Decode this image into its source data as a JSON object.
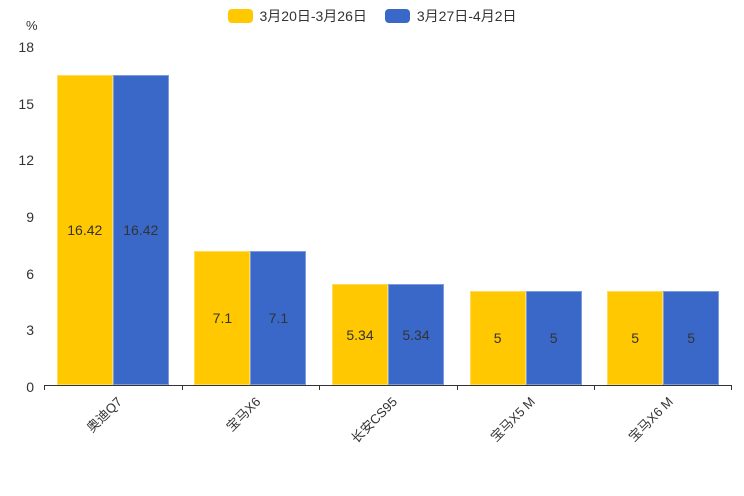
{
  "chart_data": {
    "type": "bar",
    "title": "",
    "unit": "%",
    "categories": [
      "奥迪Q7",
      "宝马X6",
      "长安CS95",
      "宝马X5 M",
      "宝马X6 M"
    ],
    "series": [
      {
        "name": "3月20日-3月26日",
        "color": "#FFC800",
        "values": [
          16.42,
          7.1,
          5.34,
          5,
          5
        ]
      },
      {
        "name": "3月27日-4月2日",
        "color": "#3A68C8",
        "values": [
          16.42,
          7.1,
          5.34,
          5,
          5
        ]
      }
    ],
    "value_labels": [
      [
        "16.42",
        "7.1",
        "5.34",
        "5",
        "5"
      ],
      [
        "16.42",
        "7.1",
        "5.34",
        "5",
        "5"
      ]
    ],
    "ylim": [
      0,
      18
    ],
    "ytick_step": 3,
    "ytick_labels": [
      "0",
      "3",
      "6",
      "9",
      "12",
      "15",
      "18"
    ],
    "grid": false,
    "legend_position": "top",
    "label_color": "#333333",
    "axis_color": "#333333",
    "background": "#ffffff"
  }
}
